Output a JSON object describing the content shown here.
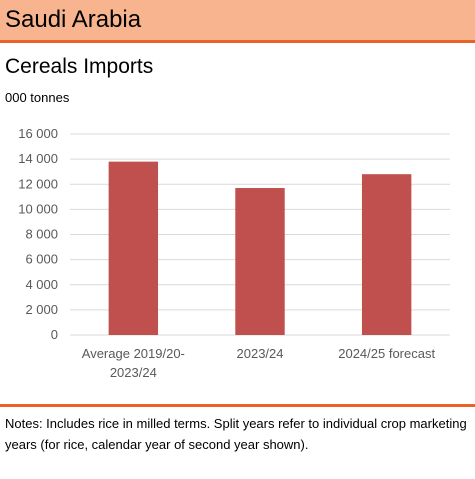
{
  "header": {
    "title": "Saudi Arabia"
  },
  "chart_data": {
    "type": "bar",
    "title": "Cereals Imports",
    "unit_label": "000 tonnes",
    "categories": [
      [
        "Average 2019/20-",
        "2023/24"
      ],
      [
        "2023/24"
      ],
      [
        "2024/25 forecast"
      ]
    ],
    "values": [
      13800,
      11700,
      12800
    ],
    "ylim": [
      0,
      16000
    ],
    "yticks": [
      0,
      2000,
      4000,
      6000,
      8000,
      10000,
      12000,
      14000,
      16000
    ],
    "ytick_labels": [
      "0",
      "2 000",
      "4 000",
      "6 000",
      "8 000",
      "10 000",
      "12 000",
      "14 000",
      "16 000"
    ],
    "grid": true,
    "bar_color": "#c0504d",
    "grid_color": "#d9d9d9"
  },
  "footer": {
    "notes": "Notes: Includes rice in milled terms. Split years refer to individual crop marketing years (for rice, calendar  year of second year shown)."
  }
}
